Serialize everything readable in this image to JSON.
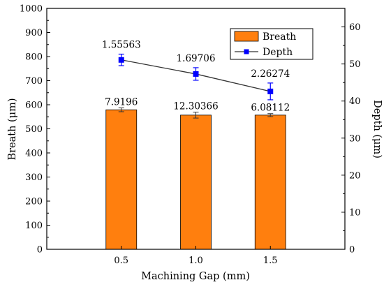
{
  "chart_data": {
    "type": "bar",
    "xlabel": "Machining Gap (mm)",
    "ylabel": "Breath (μm)",
    "y2label": "Depth (μm)",
    "categories": [
      "0.5",
      "1.0",
      "1.5"
    ],
    "ylim": [
      0,
      1000
    ],
    "y2lim": [
      0,
      65
    ],
    "yticks": [
      "0",
      "100",
      "200",
      "300",
      "400",
      "500",
      "600",
      "700",
      "800",
      "900",
      "1000"
    ],
    "y2ticks": [
      "0",
      "10",
      "20",
      "30",
      "40",
      "50",
      "60"
    ],
    "series": [
      {
        "name": "Breath",
        "type": "bar",
        "axis": "left",
        "color": "#ff7f0e",
        "values": [
          579,
          557,
          557
        ],
        "errors": [
          7.9196,
          12.30366,
          6.08112
        ],
        "labels": [
          "7.9196",
          "12.30366",
          "6.08112"
        ]
      },
      {
        "name": "Depth",
        "type": "line",
        "axis": "right",
        "color": "#0000ff",
        "values": [
          51.1,
          47.3,
          42.6
        ],
        "errors": [
          1.55563,
          1.69706,
          2.26274
        ],
        "labels": [
          "1.55563",
          "1.69706",
          "2.26274"
        ]
      }
    ],
    "legend": {
      "position": "top-right"
    },
    "grid": false
  }
}
